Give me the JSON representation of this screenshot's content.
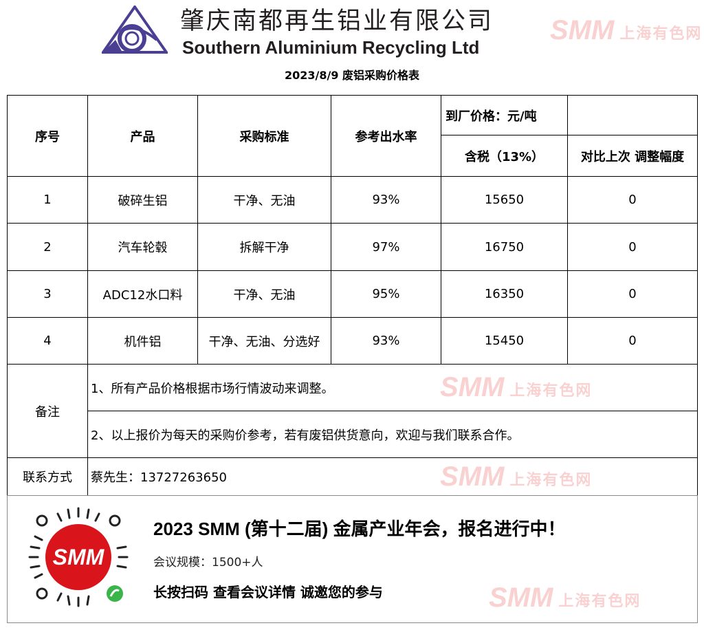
{
  "header": {
    "company_cn": "肇庆南都再生铝业有限公司",
    "company_en": "Southern Aluminium Recycling Ltd",
    "subtitle": "2023/8/9  废铝采购价格表",
    "logo_color": "#4b3f94"
  },
  "table": {
    "headers": {
      "index": "序号",
      "product": "产品",
      "standard": "采购标准",
      "yield": "参考出水率",
      "price_group": "到厂价格：元/吨",
      "tax": "含税（13%）",
      "change": "对比上次 调整幅度"
    },
    "rows": [
      {
        "index": "1",
        "product": "破碎生铝",
        "standard": "干净、无油",
        "yield": "93%",
        "price": "15650",
        "change": "0"
      },
      {
        "index": "2",
        "product": "汽车轮毂",
        "standard": "拆解干净",
        "yield": "97%",
        "price": "16750",
        "change": "0"
      },
      {
        "index": "3",
        "product": "ADC12水口料",
        "standard": "干净、无油",
        "yield": "95%",
        "price": "16350",
        "change": "0"
      },
      {
        "index": "4",
        "product": "机件铝",
        "standard": "干净、无油、分选好",
        "yield": "93%",
        "price": "15450",
        "change": "0"
      }
    ],
    "remarks_label": "备注",
    "remarks": [
      "1、所有产品价格根据市场行情波动来调整。",
      "2、以上报价为每天的采购价参考，若有废铝供货意向，欢迎与我们联系合作。"
    ],
    "contact_label": "联系方式",
    "contact_value": "蔡先生：13727263650"
  },
  "watermark": {
    "brand": "SMM",
    "name": "上海有色网",
    "color": "#eb5a5a"
  },
  "footer": {
    "headline": "2023 SMM (第十二届) 金属产业年会，报名进行中！",
    "scale": "会议规模：1500+人",
    "cta": "长按扫码  查看会议详情   诚邀您的参与",
    "qr_logo": "SMM",
    "accent": "#d9141b"
  }
}
